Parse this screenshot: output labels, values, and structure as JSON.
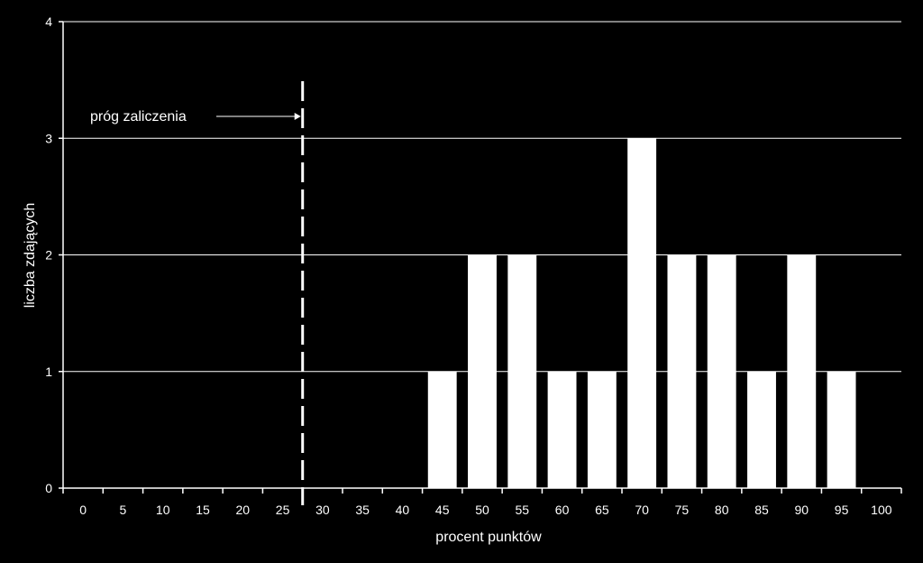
{
  "chart_data": {
    "type": "bar",
    "title": "",
    "xlabel": "procent punktów",
    "ylabel": "liczba zdających",
    "categories": [
      "0",
      "5",
      "10",
      "15",
      "20",
      "25",
      "30",
      "35",
      "40",
      "45",
      "50",
      "55",
      "60",
      "65",
      "70",
      "75",
      "80",
      "85",
      "90",
      "95",
      "100"
    ],
    "values": [
      0,
      0,
      0,
      0,
      0,
      0,
      0,
      0,
      0,
      1,
      2,
      2,
      1,
      1,
      3,
      2,
      2,
      1,
      2,
      1,
      0
    ],
    "ylim": [
      0,
      4
    ],
    "yticks": [
      "0",
      "1",
      "2",
      "3",
      "4"
    ],
    "grid": true,
    "legend": "none",
    "threshold": {
      "label": "próg zaliczenia",
      "x_value": 27.5
    },
    "colors": {
      "background": "#000000",
      "bar": "#ffffff",
      "axis": "#ffffff",
      "grid": "#ffffff"
    }
  }
}
